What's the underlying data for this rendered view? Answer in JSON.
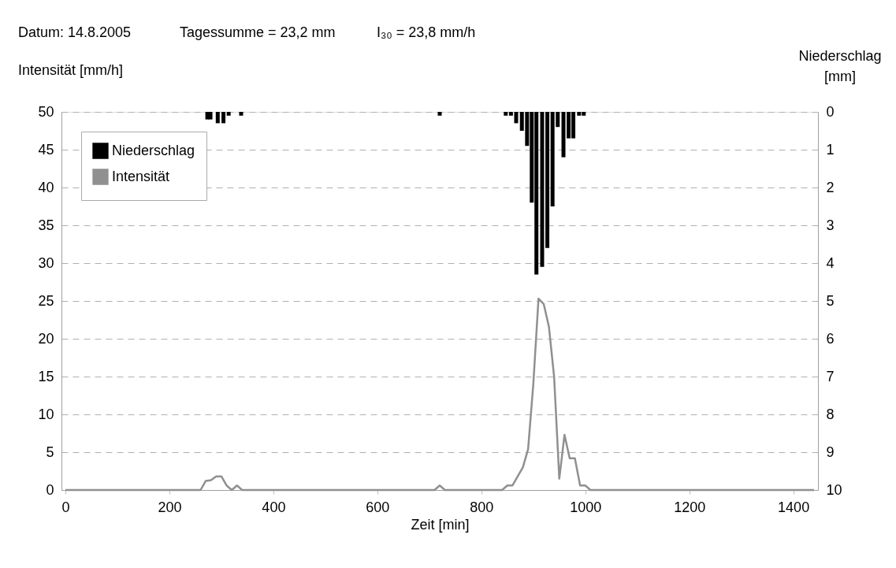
{
  "chart_data": {
    "type": "bar",
    "xlabel": "Zeit [min]",
    "ylabel": "Intensität [mm/h]",
    "y2label": "Niederschlag [mm]",
    "annotations": [
      "Datum: 14.8.2005",
      "Tagessumme =  23,2  mm",
      "I₃₀ =  23,8  mm/h"
    ],
    "xlim": [
      0,
      1440
    ],
    "xticks": [
      0,
      200,
      400,
      600,
      800,
      1000,
      1200,
      1400
    ],
    "ylim": [
      0,
      50
    ],
    "yticks": [
      0,
      5,
      10,
      15,
      20,
      25,
      30,
      35,
      40,
      45,
      50
    ],
    "y2lim": [
      10,
      0
    ],
    "y2ticks": [
      0,
      1,
      2,
      3,
      4,
      5,
      6,
      7,
      8,
      9,
      10
    ],
    "grid": "y",
    "legend": "top left",
    "series": [
      {
        "name": "Niederschlag",
        "axis": "y2",
        "color": "#000000",
        "x": [
          273,
          279,
          293,
          304,
          314,
          338,
          720,
          847,
          857,
          867,
          878,
          888,
          897,
          906,
          917,
          927,
          937,
          947,
          958,
          968,
          977,
          988,
          997
        ],
        "values": [
          0.2,
          0.2,
          0.3,
          0.3,
          0.1,
          0.1,
          0.1,
          0.1,
          0.1,
          0.3,
          0.5,
          0.9,
          2.4,
          4.3,
          4.1,
          3.6,
          2.5,
          0.4,
          1.2,
          0.7,
          0.7,
          0.1,
          0.1
        ]
      },
      {
        "name": "Intensität",
        "type": "line",
        "color": "#909090",
        "x": [
          0,
          260,
          270,
          280,
          290,
          300,
          310,
          320,
          330,
          340,
          710,
          720,
          730,
          840,
          850,
          860,
          870,
          880,
          890,
          900,
          910,
          920,
          930,
          940,
          950,
          960,
          970,
          980,
          990,
          1000,
          1010,
          1440
        ],
        "values": [
          0,
          0,
          1.2,
          1.3,
          1.8,
          1.8,
          0.6,
          0,
          0.6,
          0,
          0,
          0.6,
          0,
          0,
          0.6,
          0.6,
          1.8,
          3,
          5.4,
          14,
          25.3,
          24.6,
          21.6,
          15,
          1.5,
          7.3,
          4.2,
          4.2,
          0.6,
          0.6,
          0,
          0
        ]
      }
    ]
  }
}
